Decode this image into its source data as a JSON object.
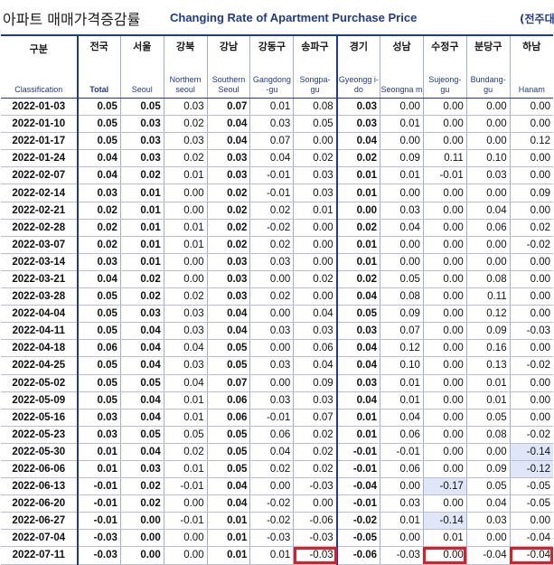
{
  "title": {
    "korean": "아파트 매매가격증감률",
    "english": "Changing Rate of Apartment Purchase Price",
    "unit": "(전주대"
  },
  "columns": [
    {
      "kr": "구분",
      "en": "Classification"
    },
    {
      "kr": "전국",
      "en": "Total"
    },
    {
      "kr": "서울",
      "en": "Seoul"
    },
    {
      "kr": "강북",
      "en": "Northern seoul"
    },
    {
      "kr": "강남",
      "en": "Southern Seoul"
    },
    {
      "kr": "강동구",
      "en": "Gangdong -gu"
    },
    {
      "kr": "송파구",
      "en": "Songpa- gu"
    },
    {
      "kr": "경기",
      "en": "Gyeongg i-do"
    },
    {
      "kr": "성남",
      "en": "Seongna m"
    },
    {
      "kr": "수정구",
      "en": "Sujeong- gu"
    },
    {
      "kr": "분당구",
      "en": "Bundang- gu"
    },
    {
      "kr": "하남",
      "en": "Hanam"
    }
  ],
  "rows": [
    {
      "date": "2022-01-03",
      "v": [
        "0.05",
        "0.05",
        "0.03",
        "0.07",
        "0.01",
        "0.08",
        "0.03",
        "0.00",
        "0.00",
        "0.00",
        "0.00"
      ]
    },
    {
      "date": "2022-01-10",
      "v": [
        "0.05",
        "0.03",
        "0.02",
        "0.04",
        "0.03",
        "0.05",
        "0.03",
        "0.01",
        "0.00",
        "0.00",
        "0.00"
      ]
    },
    {
      "date": "2022-01-17",
      "v": [
        "0.05",
        "0.03",
        "0.03",
        "0.04",
        "0.07",
        "0.00",
        "0.04",
        "0.00",
        "0.00",
        "0.00",
        "0.12"
      ]
    },
    {
      "date": "2022-01-24",
      "v": [
        "0.04",
        "0.03",
        "0.02",
        "0.03",
        "0.04",
        "0.02",
        "0.02",
        "0.09",
        "0.11",
        "0.10",
        "0.00"
      ]
    },
    {
      "date": "2022-02-07",
      "v": [
        "0.04",
        "0.02",
        "0.01",
        "0.03",
        "-0.01",
        "0.03",
        "0.01",
        "0.01",
        "-0.01",
        "0.03",
        "0.00"
      ]
    },
    {
      "date": "2022-02-14",
      "v": [
        "0.03",
        "0.01",
        "0.00",
        "0.02",
        "-0.01",
        "0.03",
        "0.01",
        "0.00",
        "0.00",
        "0.00",
        "0.09"
      ]
    },
    {
      "date": "2022-02-21",
      "v": [
        "0.02",
        "0.01",
        "0.00",
        "0.02",
        "0.02",
        "0.01",
        "0.00",
        "0.03",
        "0.00",
        "0.04",
        "0.00"
      ]
    },
    {
      "date": "2022-02-28",
      "v": [
        "0.02",
        "0.01",
        "0.01",
        "0.02",
        "-0.02",
        "0.00",
        "0.02",
        "0.04",
        "0.00",
        "0.06",
        "0.02"
      ]
    },
    {
      "date": "2022-03-07",
      "v": [
        "0.02",
        "0.01",
        "0.01",
        "0.02",
        "0.02",
        "0.00",
        "0.01",
        "0.00",
        "0.00",
        "0.00",
        "-0.02"
      ]
    },
    {
      "date": "2022-03-14",
      "v": [
        "0.03",
        "0.01",
        "0.00",
        "0.03",
        "0.03",
        "0.00",
        "0.01",
        "0.00",
        "0.00",
        "0.00",
        "0.00"
      ]
    },
    {
      "date": "2022-03-21",
      "v": [
        "0.04",
        "0.02",
        "0.00",
        "0.03",
        "0.00",
        "0.02",
        "0.02",
        "0.05",
        "0.00",
        "0.08",
        "0.00"
      ]
    },
    {
      "date": "2022-03-28",
      "v": [
        "0.05",
        "0.02",
        "0.02",
        "0.03",
        "0.02",
        "0.00",
        "0.04",
        "0.08",
        "0.00",
        "0.11",
        "0.00"
      ]
    },
    {
      "date": "2022-04-04",
      "v": [
        "0.05",
        "0.03",
        "0.03",
        "0.04",
        "0.00",
        "0.04",
        "0.05",
        "0.09",
        "0.00",
        "0.12",
        "0.00"
      ]
    },
    {
      "date": "2022-04-11",
      "v": [
        "0.05",
        "0.04",
        "0.03",
        "0.04",
        "0.03",
        "0.03",
        "0.03",
        "0.07",
        "0.00",
        "0.09",
        "-0.03"
      ]
    },
    {
      "date": "2022-04-18",
      "v": [
        "0.06",
        "0.04",
        "0.04",
        "0.05",
        "0.00",
        "0.06",
        "0.04",
        "0.12",
        "0.00",
        "0.16",
        "0.00"
      ]
    },
    {
      "date": "2022-04-25",
      "v": [
        "0.05",
        "0.04",
        "0.03",
        "0.05",
        "0.03",
        "0.04",
        "0.04",
        "0.10",
        "0.00",
        "0.13",
        "-0.02"
      ]
    },
    {
      "date": "2022-05-02",
      "v": [
        "0.05",
        "0.05",
        "0.04",
        "0.07",
        "0.00",
        "0.09",
        "0.03",
        "0.01",
        "0.00",
        "0.01",
        "0.00"
      ]
    },
    {
      "date": "2022-05-09",
      "v": [
        "0.05",
        "0.04",
        "0.01",
        "0.06",
        "0.03",
        "0.03",
        "0.04",
        "0.01",
        "0.00",
        "0.01",
        "0.00"
      ]
    },
    {
      "date": "2022-05-16",
      "v": [
        "0.03",
        "0.04",
        "0.01",
        "0.06",
        "-0.01",
        "0.07",
        "0.01",
        "0.04",
        "0.00",
        "0.05",
        "0.00"
      ]
    },
    {
      "date": "2022-05-23",
      "v": [
        "0.03",
        "0.05",
        "0.05",
        "0.05",
        "0.06",
        "0.02",
        "0.01",
        "0.06",
        "0.00",
        "0.08",
        "-0.02"
      ]
    },
    {
      "date": "2022-05-30",
      "v": [
        "0.01",
        "0.04",
        "0.02",
        "0.05",
        "0.04",
        "0.02",
        "-0.01",
        "-0.01",
        "0.00",
        "0.00",
        "-0.14"
      ]
    },
    {
      "date": "2022-06-06",
      "v": [
        "0.01",
        "0.03",
        "0.01",
        "0.05",
        "0.02",
        "0.02",
        "-0.01",
        "0.06",
        "0.00",
        "0.09",
        "-0.12"
      ]
    },
    {
      "date": "2022-06-13",
      "v": [
        "-0.01",
        "0.02",
        "-0.01",
        "0.04",
        "0.00",
        "-0.03",
        "-0.04",
        "0.00",
        "-0.17",
        "0.05",
        "-0.05"
      ]
    },
    {
      "date": "2022-06-20",
      "v": [
        "-0.01",
        "0.02",
        "0.00",
        "0.04",
        "-0.02",
        "0.00",
        "-0.01",
        "0.03",
        "0.00",
        "0.04",
        "-0.05"
      ]
    },
    {
      "date": "2022-06-27",
      "v": [
        "-0.01",
        "0.00",
        "-0.01",
        "0.01",
        "-0.02",
        "-0.06",
        "-0.02",
        "0.01",
        "-0.14",
        "0.03",
        "0.00"
      ]
    },
    {
      "date": "2022-07-04",
      "v": [
        "-0.03",
        "0.00",
        "0.00",
        "0.01",
        "-0.03",
        "-0.03",
        "-0.05",
        "0.00",
        "0.01",
        "0.00",
        "-0.04"
      ]
    },
    {
      "date": "2022-07-11",
      "v": [
        "-0.03",
        "0.00",
        "0.00",
        "0.01",
        "0.01",
        "-0.03",
        "-0.06",
        "-0.03",
        "0.00",
        "-0.04",
        "-0.04"
      ]
    }
  ],
  "highlight_color": "#dfe6f7",
  "marker_color": "#e21c24"
}
